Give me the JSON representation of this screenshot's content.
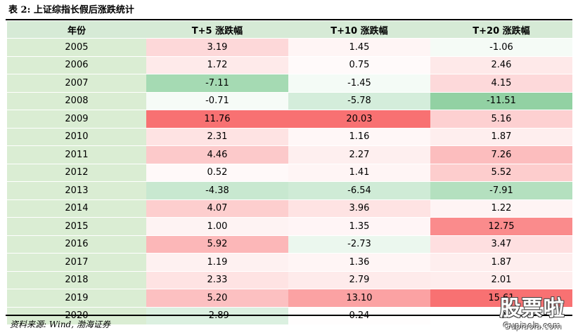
{
  "title": "表 2: 上证综指长假后涨跌统计",
  "headers": [
    "年份",
    "T+5 涨跌幅",
    "T+10 涨跌幅",
    "T+20 涨跌幅"
  ],
  "rows": [
    {
      "year": "2005",
      "t5": "3.19",
      "t10": "1.45",
      "t20": "-1.06"
    },
    {
      "year": "2006",
      "t5": "1.72",
      "t10": "0.75",
      "t20": "2.46"
    },
    {
      "year": "2007",
      "t5": "-7.11",
      "t10": "-1.45",
      "t20": "4.15"
    },
    {
      "year": "2008",
      "t5": "-0.71",
      "t10": "-5.78",
      "t20": "-11.51"
    },
    {
      "year": "2009",
      "t5": "11.76",
      "t10": "20.03",
      "t20": "5.16"
    },
    {
      "year": "2010",
      "t5": "2.31",
      "t10": "1.16",
      "t20": "1.87"
    },
    {
      "year": "2011",
      "t5": "4.46",
      "t10": "2.27",
      "t20": "7.26"
    },
    {
      "year": "2012",
      "t5": "0.52",
      "t10": "1.41",
      "t20": "5.52"
    },
    {
      "year": "2013",
      "t5": "-4.38",
      "t10": "-6.54",
      "t20": "-7.91"
    },
    {
      "year": "2014",
      "t5": "4.07",
      "t10": "3.96",
      "t20": "1.22"
    },
    {
      "year": "2015",
      "t5": "1.00",
      "t10": "1.35",
      "t20": "12.75"
    },
    {
      "year": "2016",
      "t5": "5.92",
      "t10": "-2.73",
      "t20": "3.47"
    },
    {
      "year": "2017",
      "t5": "1.19",
      "t10": "1.36",
      "t20": "1.87"
    },
    {
      "year": "2018",
      "t5": "2.33",
      "t10": "2.79",
      "t20": "2.01"
    },
    {
      "year": "2019",
      "t5": "5.20",
      "t10": "13.10",
      "t20": "15.61"
    },
    {
      "year": "2020",
      "t5": "-2.89",
      "t10": "0.24",
      "t20": "-0"
    }
  ],
  "colors": {
    "positive": "#f8696b",
    "negative": "#63be7b",
    "neutral": "#ffffff",
    "year_column": "#daedd3",
    "header": "#d6ead6"
  },
  "source": "资料来源: Wind, 渤海证券",
  "watermark": {
    "cn": "股票啦",
    "en": "Gupiaola.com"
  }
}
